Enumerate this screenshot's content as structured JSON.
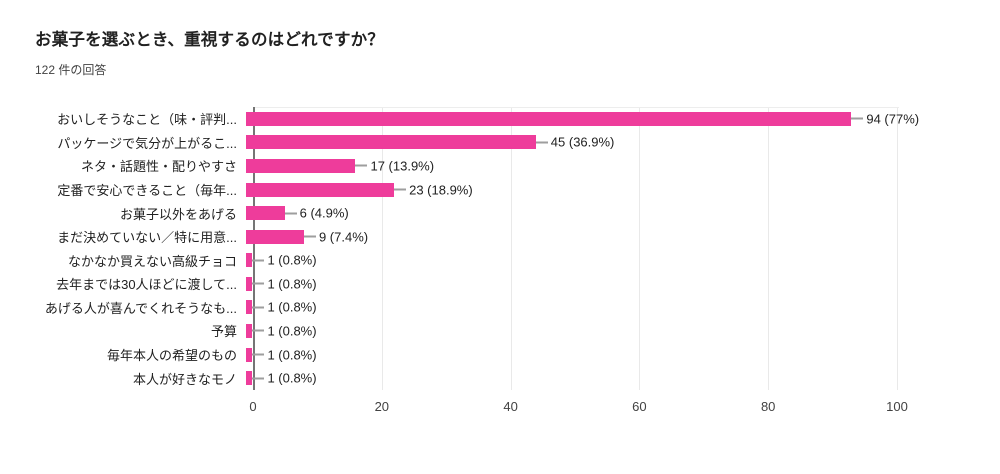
{
  "chart_data": {
    "type": "bar",
    "orientation": "horizontal",
    "title": "お菓子を選ぶとき、重視するのはどれですか？",
    "subtitle": "122 件の回答",
    "categories": [
      "おいしそうなこと（味・評判...",
      "パッケージで気分が上がるこ...",
      "ネタ・話題性・配りやすさ",
      "定番で安心できること（毎年...",
      "お菓子以外をあげる",
      "まだ決めていない／特に用意...",
      "なかなか買えない高級チョコ",
      "去年までは30人ほどに渡して...",
      "あげる人が喜んでくれそうなも...",
      "予算",
      "毎年本人の希望のもの",
      "本人が好きなモノ"
    ],
    "values": [
      94,
      45,
      17,
      23,
      6,
      9,
      1,
      1,
      1,
      1,
      1,
      1
    ],
    "value_labels": [
      "94 (77%)",
      "45 (36.9%)",
      "17 (13.9%)",
      "23 (18.9%)",
      "6 (4.9%)",
      "9 (7.4%)",
      "1 (0.8%)",
      "1 (0.8%)",
      "1 (0.8%)",
      "1 (0.8%)",
      "1 (0.8%)",
      "1 (0.8%)"
    ],
    "xlim": [
      0,
      100
    ],
    "xticks": [
      "0",
      "20",
      "40",
      "60",
      "80",
      "100"
    ],
    "grid": true,
    "legend": "none"
  },
  "colors": {
    "bar": "#ee3c9b",
    "axis_line": "#757575",
    "gridline": "#e9e9e9",
    "callout_line": "#9e9e9e",
    "text": "#212121",
    "subtitle_text": "#424242"
  }
}
